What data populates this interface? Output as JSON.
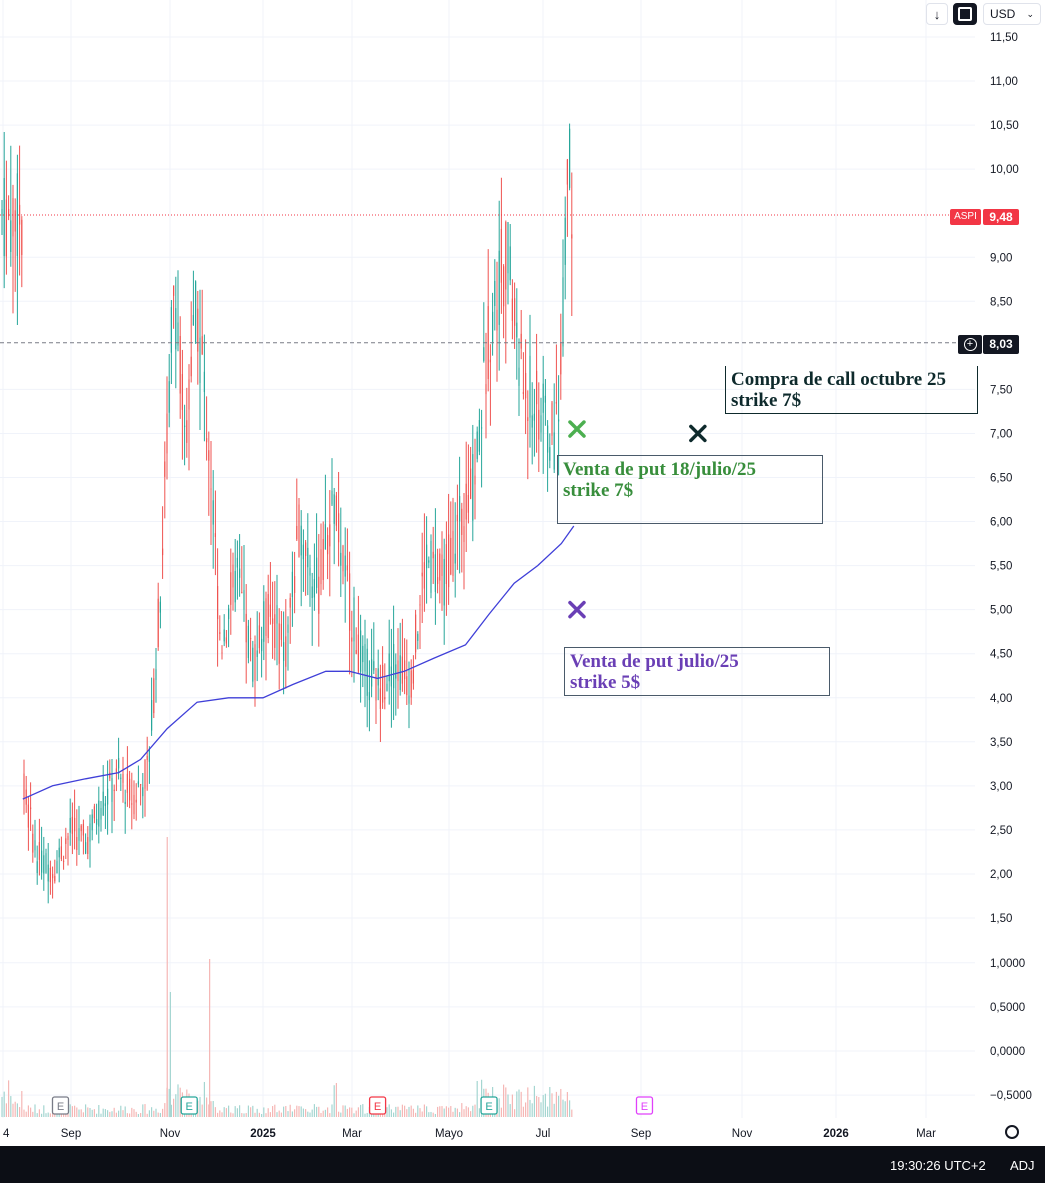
{
  "toolbar": {
    "arrow_icon": "arrow-down-icon",
    "fullscreen_icon": "fullscreen-icon",
    "currency": "USD"
  },
  "chart_data": {
    "type": "candlestick",
    "symbol": "ASPI",
    "price_axis_ticks": [
      "11,50",
      "11,00",
      "10,50",
      "10,00",
      "9,00",
      "8,50",
      "7,50",
      "7,00",
      "6,50",
      "6,00",
      "5,50",
      "5,00",
      "4,50",
      "4,00",
      "3,50",
      "3,00",
      "2,50",
      "2,00",
      "1,50"
    ],
    "volume_axis_ticks": [
      "1,0000",
      "0,5000",
      "0,0000",
      "−0,5000"
    ],
    "time_axis_ticks": [
      "4",
      "Sep",
      "Nov",
      "2025",
      "Mar",
      "Mayo",
      "Jul",
      "Sep",
      "Nov",
      "2026",
      "Mar"
    ],
    "price_range": [
      1.3,
      11.8
    ],
    "last_price": {
      "label": "ASPI",
      "value": "9,48",
      "numeric": 9.48
    },
    "crosshair_price": {
      "value": "8,03",
      "numeric": 8.03
    },
    "moving_average": [
      {
        "t": "2024-08-01",
        "v": 2.85
      },
      {
        "t": "2024-08-20",
        "v": 3.0
      },
      {
        "t": "2024-09-10",
        "v": 3.08
      },
      {
        "t": "2024-10-01",
        "v": 3.15
      },
      {
        "t": "2024-10-15",
        "v": 3.3
      },
      {
        "t": "2024-11-01",
        "v": 3.65
      },
      {
        "t": "2024-11-20",
        "v": 3.95
      },
      {
        "t": "2024-12-10",
        "v": 4.0
      },
      {
        "t": "2025-01-01",
        "v": 4.0
      },
      {
        "t": "2025-01-20",
        "v": 4.15
      },
      {
        "t": "2025-02-10",
        "v": 4.3
      },
      {
        "t": "2025-02-25",
        "v": 4.3
      },
      {
        "t": "2025-03-15",
        "v": 4.22
      },
      {
        "t": "2025-04-01",
        "v": 4.3
      },
      {
        "t": "2025-04-20",
        "v": 4.45
      },
      {
        "t": "2025-05-10",
        "v": 4.6
      },
      {
        "t": "2025-05-25",
        "v": 4.95
      },
      {
        "t": "2025-06-10",
        "v": 5.3
      },
      {
        "t": "2025-06-25",
        "v": 5.5
      },
      {
        "t": "2025-07-10",
        "v": 5.75
      },
      {
        "t": "2025-07-18",
        "v": 5.95
      }
    ],
    "price_path": [
      {
        "t": "2024-08-01",
        "v": 3.0
      },
      {
        "t": "2024-08-10",
        "v": 2.2
      },
      {
        "t": "2024-08-20",
        "v": 2.05
      },
      {
        "t": "2024-09-01",
        "v": 2.5
      },
      {
        "t": "2024-09-10",
        "v": 2.35
      },
      {
        "t": "2024-09-20",
        "v": 2.8
      },
      {
        "t": "2024-10-01",
        "v": 3.1
      },
      {
        "t": "2024-10-10",
        "v": 2.85
      },
      {
        "t": "2024-10-20",
        "v": 3.2
      },
      {
        "t": "2024-10-28",
        "v": 5.3
      },
      {
        "t": "2024-11-05",
        "v": 8.8
      },
      {
        "t": "2024-11-12",
        "v": 7.0
      },
      {
        "t": "2024-11-20",
        "v": 8.4
      },
      {
        "t": "2024-11-28",
        "v": 6.8
      },
      {
        "t": "2024-12-05",
        "v": 4.6
      },
      {
        "t": "2024-12-15",
        "v": 5.4
      },
      {
        "t": "2024-12-25",
        "v": 4.4
      },
      {
        "t": "2025-01-05",
        "v": 5.0
      },
      {
        "t": "2025-01-15",
        "v": 4.5
      },
      {
        "t": "2025-01-25",
        "v": 6.0
      },
      {
        "t": "2025-02-05",
        "v": 5.2
      },
      {
        "t": "2025-02-15",
        "v": 6.2
      },
      {
        "t": "2025-02-25",
        "v": 5.1
      },
      {
        "t": "2025-03-05",
        "v": 4.4
      },
      {
        "t": "2025-03-15",
        "v": 4.1
      },
      {
        "t": "2025-03-25",
        "v": 4.4
      },
      {
        "t": "2025-04-05",
        "v": 4.2
      },
      {
        "t": "2025-04-15",
        "v": 5.6
      },
      {
        "t": "2025-04-25",
        "v": 5.3
      },
      {
        "t": "2025-05-05",
        "v": 5.9
      },
      {
        "t": "2025-05-15",
        "v": 6.4
      },
      {
        "t": "2025-05-25",
        "v": 8.2
      },
      {
        "t": "2025-06-05",
        "v": 9.1
      },
      {
        "t": "2025-06-15",
        "v": 7.6
      },
      {
        "t": "2025-06-25",
        "v": 7.3
      },
      {
        "t": "2025-07-05",
        "v": 6.9
      },
      {
        "t": "2025-07-10",
        "v": 7.8
      },
      {
        "t": "2025-07-14",
        "v": 10.2
      },
      {
        "t": "2025-07-18",
        "v": 9.48
      }
    ],
    "earnings_markers": [
      {
        "t": "2024-08-25",
        "color": "#787b86"
      },
      {
        "t": "2024-11-15",
        "color": "#26a69a"
      },
      {
        "t": "2025-03-15",
        "color": "#f23645"
      },
      {
        "t": "2025-05-25",
        "color": "#26a69a"
      },
      {
        "t": "2025-09-01",
        "color": "#e040fb"
      }
    ],
    "markers": [
      {
        "t": "2025-07-20",
        "v": 7.05,
        "color": "#4caf50"
      },
      {
        "t": "2025-10-05",
        "v": 7.0,
        "color": "#0e2a2c"
      },
      {
        "t": "2025-07-20",
        "v": 5.0,
        "color": "#6a3fb5"
      }
    ]
  },
  "annotations": [
    {
      "line1": "Compra de call octubre 25",
      "line2": "strike 7$",
      "color": "#0e2a2c",
      "border": "#0e2a2c"
    },
    {
      "line1": "Venta de put 18/julio/25",
      "line2": "strike 7$",
      "color": "#388e3c",
      "border": "#4a5a6a"
    },
    {
      "line1": "Venta de put julio/25",
      "line2": "strike 5$",
      "color": "#6a3fb5",
      "border": "#4a5a6a"
    }
  ],
  "status_bar": {
    "time": "19:30:26 UTC+2",
    "adj": "ADJ"
  }
}
